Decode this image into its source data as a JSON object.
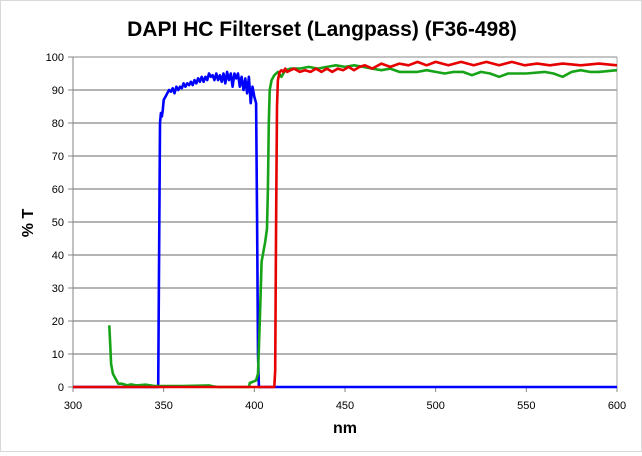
{
  "chart_data": {
    "type": "line",
    "title": "DAPI HC Filterset (Langpass) (F36-498)",
    "xlabel": "nm",
    "ylabel": "% T",
    "xlim": [
      300,
      600
    ],
    "ylim": [
      0,
      100
    ],
    "xticks": [
      300,
      350,
      400,
      450,
      500,
      550,
      600
    ],
    "yticks": [
      0,
      10,
      20,
      30,
      40,
      50,
      60,
      70,
      80,
      90,
      100
    ],
    "grid": "horizontal",
    "legend": "none",
    "series": [
      {
        "color": "#0000ff",
        "points": [
          [
            300,
            0
          ],
          [
            347,
            0
          ],
          [
            347.5,
            40
          ],
          [
            348,
            80
          ],
          [
            348.5,
            83
          ],
          [
            349,
            82
          ],
          [
            349.5,
            84
          ],
          [
            350,
            87
          ],
          [
            351,
            88
          ],
          [
            352,
            89
          ],
          [
            353,
            90
          ],
          [
            354,
            89.5
          ],
          [
            355,
            90.5
          ],
          [
            356,
            89
          ],
          [
            357,
            91
          ],
          [
            358,
            90
          ],
          [
            359,
            91
          ],
          [
            360,
            90.5
          ],
          [
            361,
            92
          ],
          [
            362,
            91
          ],
          [
            363,
            92
          ],
          [
            364,
            91.5
          ],
          [
            365,
            92.5
          ],
          [
            366,
            91.5
          ],
          [
            367,
            93
          ],
          [
            368,
            92
          ],
          [
            369,
            93.5
          ],
          [
            370,
            92.5
          ],
          [
            371,
            94
          ],
          [
            372,
            92.5
          ],
          [
            373,
            94
          ],
          [
            374,
            93
          ],
          [
            375,
            95
          ],
          [
            376,
            94
          ],
          [
            377,
            94.5
          ],
          [
            378,
            93
          ],
          [
            379,
            95
          ],
          [
            380,
            93
          ],
          [
            381,
            94.5
          ],
          [
            382,
            92.5
          ],
          [
            383,
            95
          ],
          [
            384,
            92
          ],
          [
            385,
            95.5
          ],
          [
            386,
            93
          ],
          [
            387,
            95
          ],
          [
            388,
            91
          ],
          [
            389,
            95
          ],
          [
            390,
            93.5
          ],
          [
            391,
            95
          ],
          [
            392,
            91
          ],
          [
            393,
            94
          ],
          [
            394,
            90
          ],
          [
            395,
            93.5
          ],
          [
            396,
            89
          ],
          [
            397,
            94
          ],
          [
            398,
            86
          ],
          [
            399,
            91
          ],
          [
            400,
            88
          ],
          [
            401,
            86
          ],
          [
            401.5,
            50
          ],
          [
            402,
            10
          ],
          [
            402.5,
            0
          ],
          [
            600,
            0
          ]
        ]
      },
      {
        "color": "#17a317",
        "points": [
          [
            320,
            18.7
          ],
          [
            320.5,
            13
          ],
          [
            321,
            7
          ],
          [
            322,
            4
          ],
          [
            323,
            3
          ],
          [
            324,
            2
          ],
          [
            325,
            1
          ],
          [
            327,
            1
          ],
          [
            330,
            0.5
          ],
          [
            332,
            0.8
          ],
          [
            335,
            0.5
          ],
          [
            340,
            0.7
          ],
          [
            345,
            0.3
          ],
          [
            350,
            0.3
          ],
          [
            360,
            0.3
          ],
          [
            370,
            0.4
          ],
          [
            375,
            0.5
          ],
          [
            377,
            0.2
          ],
          [
            380,
            0
          ],
          [
            397,
            0
          ],
          [
            397.5,
            1.2
          ],
          [
            401,
            2
          ],
          [
            402,
            4
          ],
          [
            403,
            20
          ],
          [
            404,
            38
          ],
          [
            405,
            41
          ],
          [
            406,
            44
          ],
          [
            407,
            48
          ],
          [
            407.5,
            60
          ],
          [
            408,
            80
          ],
          [
            408.5,
            90
          ],
          [
            409.5,
            93
          ],
          [
            411,
            94.5
          ],
          [
            413,
            95.5
          ],
          [
            415,
            94
          ],
          [
            417,
            96
          ],
          [
            420,
            96.5
          ],
          [
            425,
            96.5
          ],
          [
            430,
            97
          ],
          [
            435,
            96.5
          ],
          [
            440,
            97
          ],
          [
            445,
            97.5
          ],
          [
            450,
            97
          ],
          [
            455,
            97.5
          ],
          [
            460,
            97
          ],
          [
            465,
            96.5
          ],
          [
            470,
            96
          ],
          [
            475,
            96.5
          ],
          [
            480,
            95.5
          ],
          [
            490,
            95.5
          ],
          [
            495,
            96
          ],
          [
            500,
            95.5
          ],
          [
            505,
            95
          ],
          [
            510,
            95.5
          ],
          [
            515,
            95.5
          ],
          [
            520,
            94.5
          ],
          [
            525,
            95.5
          ],
          [
            530,
            95
          ],
          [
            535,
            94
          ],
          [
            540,
            95
          ],
          [
            545,
            95
          ],
          [
            550,
            95
          ],
          [
            560,
            95.5
          ],
          [
            565,
            95
          ],
          [
            570,
            94
          ],
          [
            575,
            95.5
          ],
          [
            580,
            96
          ],
          [
            585,
            95.5
          ],
          [
            590,
            95.5
          ],
          [
            600,
            96
          ]
        ]
      },
      {
        "color": "#e60000",
        "points": [
          [
            300,
            0
          ],
          [
            411,
            0
          ],
          [
            411.5,
            5
          ],
          [
            412,
            50
          ],
          [
            412.5,
            85
          ],
          [
            413,
            93
          ],
          [
            414,
            95.5
          ],
          [
            415,
            96
          ],
          [
            416,
            95.5
          ],
          [
            417,
            96.5
          ],
          [
            418,
            95.5
          ],
          [
            420,
            96
          ],
          [
            422,
            96.5
          ],
          [
            425,
            95.5
          ],
          [
            428,
            96
          ],
          [
            431,
            95.5
          ],
          [
            434,
            96.5
          ],
          [
            437,
            95.5
          ],
          [
            440,
            96.5
          ],
          [
            443,
            95.5
          ],
          [
            446,
            96.5
          ],
          [
            449,
            96
          ],
          [
            452,
            97
          ],
          [
            455,
            96
          ],
          [
            458,
            97
          ],
          [
            461,
            97.5
          ],
          [
            465,
            96.5
          ],
          [
            470,
            98
          ],
          [
            475,
            97
          ],
          [
            480,
            98
          ],
          [
            485,
            97.5
          ],
          [
            490,
            98.5
          ],
          [
            495,
            97.5
          ],
          [
            500,
            98.5
          ],
          [
            507,
            97.5
          ],
          [
            514,
            98.5
          ],
          [
            521,
            97.5
          ],
          [
            528,
            98.5
          ],
          [
            535,
            97.5
          ],
          [
            542,
            98.5
          ],
          [
            549,
            97.5
          ],
          [
            556,
            98
          ],
          [
            563,
            97.5
          ],
          [
            570,
            98
          ],
          [
            580,
            97.5
          ],
          [
            590,
            98
          ],
          [
            600,
            97.5
          ]
        ]
      }
    ]
  }
}
